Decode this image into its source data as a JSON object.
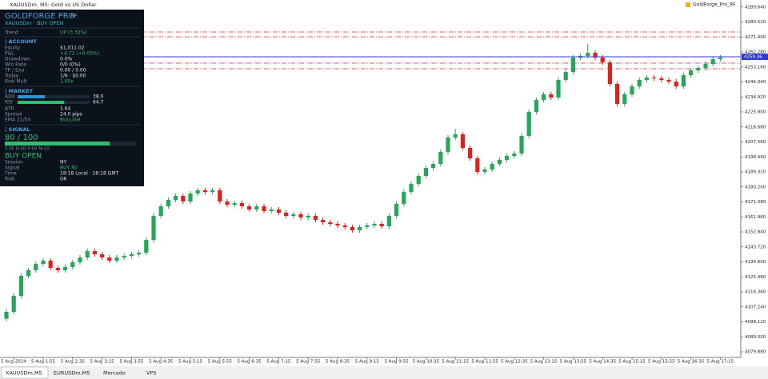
{
  "window": {
    "caption": "XAUUSDm, M5:  Gold vs US Dollar",
    "expert": "GoldForge_Pro_RF"
  },
  "chart_data": {
    "type": "candlestick",
    "categories": [
      null,
      "5 Aug 2024",
      null,
      null,
      null,
      "5 Aug 1:55",
      null,
      null,
      null,
      "5 Aug 2:35",
      null,
      null,
      null,
      "5 Aug 3:15",
      null,
      null,
      null,
      "5 Aug 3:55",
      null,
      null,
      null,
      "5 Aug 4:35",
      null,
      null,
      null,
      "5 Aug 5:15",
      null,
      null,
      null,
      "5 Aug 5:55",
      null,
      null,
      null,
      "5 Aug 6:35",
      null,
      null,
      null,
      "5 Aug 7:15",
      null,
      null,
      null,
      "5 Aug 7:55",
      null,
      null,
      null,
      "5 Aug 8:35",
      null,
      null,
      null,
      "5 Aug 9:15",
      null,
      null,
      null,
      "5 Aug 9:55",
      null,
      null,
      null,
      "5 Aug 10:35",
      null,
      null,
      null,
      "5 Aug 11:15",
      null,
      null,
      null,
      "5 Aug 11:55",
      null,
      null,
      null,
      "5 Aug 12:35",
      null,
      null,
      null,
      "5 Aug 13:15",
      null,
      null,
      null,
      "5 Aug 13:55",
      null,
      null,
      null,
      "5 Aug 14:35",
      null,
      null,
      null,
      "5 Aug 15:15",
      null,
      null,
      null,
      "5 Aug 15:55",
      null,
      null,
      null,
      "5 Aug 16:35",
      null,
      null,
      null,
      "5 Aug 17:15"
    ],
    "open": [
      4100.0,
      4104.2,
      4113.93,
      4126.09,
      4129.49,
      4133.38,
      4135.33,
      4130.95,
      4129.49,
      4131.44,
      4134.36,
      4137.28,
      4141.17,
      4139.22,
      4137.28,
      4135.33,
      4137.28,
      4138.25,
      4139.22,
      4140.19,
      4147.98,
      4162.57,
      4168.4,
      4172.3,
      4174.73,
      4171.32,
      4176.19,
      4178.13,
      4177.16,
      4178.13,
      4171.32,
      4169.38,
      4170.35,
      4168.4,
      4166.46,
      4168.4,
      4165.49,
      4166.46,
      4164.51,
      4162.57,
      4163.54,
      4161.6,
      4162.57,
      4160.14,
      4158.68,
      4157.7,
      4156.73,
      4155.76,
      4153.81,
      4155.76,
      4156.73,
      4157.7,
      4156.24,
      4162.57,
      4169.86,
      4177.16,
      4182.02,
      4186.89,
      4191.75,
      4194.18,
      4201.48,
      4210.24,
      4212.18,
      4203.91,
      4197.59,
      4189.32,
      4190.78,
      4194.18,
      4196.62,
      4199.05,
      4200.51,
      4211.21,
      4225.8,
      4233.1,
      4236.5,
      4234.56,
      4245.26,
      4250.12,
      4258.88,
      4259.85,
      4261.79,
      4258.88,
      4255.96,
      4242.82,
      4230.66,
      4236.5,
      4241.36,
      4245.26,
      4246.72,
      4246.23,
      4245.26,
      4244.28,
      4241.36,
      4248.17,
      4251.09,
      4252.55,
      4254.98,
      4257.9
    ],
    "high": [
      4105.7,
      4115.43,
      4127.59,
      4130.99,
      4134.88,
      4136.83,
      4136.83,
      4132.45,
      4132.94,
      4135.86,
      4138.78,
      4142.67,
      4142.67,
      4140.72,
      4138.78,
      4138.78,
      4139.75,
      4140.72,
      4141.69,
      4149.48,
      4164.07,
      4169.9,
      4173.8,
      4176.23,
      4176.23,
      4177.69,
      4179.63,
      4179.63,
      4179.63,
      4179.63,
      4172.82,
      4171.85,
      4171.85,
      4169.9,
      4169.9,
      4169.9,
      4167.96,
      4167.96,
      4166.01,
      4165.04,
      4165.04,
      4164.07,
      4164.07,
      4161.64,
      4160.18,
      4159.2,
      4158.23,
      4157.26,
      4157.26,
      4158.23,
      4159.2,
      4159.2,
      4164.07,
      4171.36,
      4178.66,
      4183.52,
      4188.39,
      4193.25,
      4195.68,
      4202.98,
      4211.74,
      4215.5,
      4213.68,
      4205.41,
      4199.09,
      4192.28,
      4195.68,
      4198.12,
      4200.55,
      4202.01,
      4212.71,
      4227.3,
      4234.6,
      4238.0,
      4238.0,
      4246.76,
      4251.62,
      4260.38,
      4261.35,
      4267.2,
      4263.29,
      4260.38,
      4257.46,
      4244.32,
      4238.0,
      4242.86,
      4246.76,
      4248.22,
      4248.22,
      4247.73,
      4246.76,
      4245.78,
      4249.67,
      4252.59,
      4254.05,
      4256.48,
      4259.4,
      4260.38
    ],
    "low": [
      4098.5,
      4102.7,
      4112.43,
      4124.59,
      4127.99,
      4131.88,
      4129.45,
      4127.99,
      4127.99,
      4129.94,
      4132.86,
      4135.78,
      4137.72,
      4135.78,
      4133.83,
      4133.83,
      4135.78,
      4136.75,
      4137.72,
      4138.69,
      4146.48,
      4161.07,
      4166.9,
      4170.8,
      4169.82,
      4169.82,
      4174.69,
      4175.66,
      4175.66,
      4169.82,
      4167.88,
      4167.88,
      4166.9,
      4164.96,
      4164.96,
      4163.99,
      4163.99,
      4163.01,
      4161.07,
      4161.07,
      4160.1,
      4160.1,
      4158.64,
      4157.18,
      4156.2,
      4155.23,
      4154.26,
      4152.31,
      4152.31,
      4154.26,
      4155.23,
      4154.74,
      4154.74,
      4161.07,
      4168.36,
      4175.66,
      4180.52,
      4185.39,
      4190.25,
      4192.68,
      4199.98,
      4208.74,
      4202.41,
      4196.09,
      4187.82,
      4187.82,
      4189.28,
      4192.68,
      4195.12,
      4197.55,
      4199.01,
      4209.71,
      4224.3,
      4231.6,
      4233.06,
      4233.06,
      4243.76,
      4248.62,
      4257.38,
      4258.35,
      4257.38,
      4254.46,
      4241.32,
      4229.16,
      4229.16,
      4235.0,
      4239.86,
      4243.76,
      4244.73,
      4243.76,
      4242.78,
      4239.86,
      4239.86,
      4246.67,
      4249.59,
      4251.05,
      4253.48,
      4256.4
    ],
    "close": [
      4104.2,
      4113.93,
      4126.09,
      4129.49,
      4133.38,
      4135.33,
      4130.95,
      4129.49,
      4131.44,
      4134.36,
      4137.28,
      4141.17,
      4139.22,
      4137.28,
      4135.33,
      4137.28,
      4138.25,
      4139.22,
      4140.19,
      4147.98,
      4162.57,
      4168.4,
      4172.3,
      4174.73,
      4171.32,
      4176.19,
      4178.13,
      4177.16,
      4178.13,
      4171.32,
      4169.38,
      4170.35,
      4168.4,
      4166.46,
      4168.4,
      4165.49,
      4166.46,
      4164.51,
      4162.57,
      4163.54,
      4161.6,
      4162.57,
      4160.14,
      4158.68,
      4157.7,
      4156.73,
      4155.76,
      4153.81,
      4155.76,
      4156.73,
      4157.7,
      4156.24,
      4162.57,
      4169.86,
      4177.16,
      4182.02,
      4186.89,
      4191.75,
      4194.18,
      4201.48,
      4210.24,
      4212.18,
      4203.91,
      4197.59,
      4189.32,
      4190.78,
      4194.18,
      4196.62,
      4199.05,
      4200.51,
      4211.21,
      4225.8,
      4233.1,
      4236.5,
      4234.56,
      4245.26,
      4250.12,
      4258.88,
      4259.85,
      4261.79,
      4258.88,
      4255.96,
      4242.82,
      4230.66,
      4236.5,
      4241.36,
      4245.26,
      4246.72,
      4246.23,
      4245.26,
      4244.28,
      4241.36,
      4248.17,
      4251.09,
      4252.55,
      4254.98,
      4257.9,
      4258.88
    ],
    "up_color": "#26a65b",
    "down_color": "#e0201b",
    "ylim": [
      4076.48,
      4293.9
    ],
    "yticks": [
      {
        "value": 4079.88,
        "label": "4079.880"
      },
      {
        "value": 4089.0,
        "label": "4089.000"
      },
      {
        "value": 4098.12,
        "label": "4098.120"
      },
      {
        "value": 4107.24,
        "label": "4107.240"
      },
      {
        "value": 4116.36,
        "label": "4116.360"
      },
      {
        "value": 4125.48,
        "label": "4125.480"
      },
      {
        "value": 4134.6,
        "label": "4134.600"
      },
      {
        "value": 4143.72,
        "label": "4143.720"
      },
      {
        "value": 4152.84,
        "label": "4152.840"
      },
      {
        "value": 4161.96,
        "label": "4161.960"
      },
      {
        "value": 4171.08,
        "label": "4171.080"
      },
      {
        "value": 4180.2,
        "label": "4180.200"
      },
      {
        "value": 4189.32,
        "label": "4189.320"
      },
      {
        "value": 4198.44,
        "label": "4198.440"
      },
      {
        "value": 4207.56,
        "label": "4207.560"
      },
      {
        "value": 4216.68,
        "label": "4216.680"
      },
      {
        "value": 4225.8,
        "label": "4225.800"
      },
      {
        "value": 4234.92,
        "label": "4234.920"
      },
      {
        "value": 4244.04,
        "label": "4244.040"
      },
      {
        "value": 4253.16,
        "label": "4253.160"
      },
      {
        "value": 4262.28,
        "label": "4262.280"
      },
      {
        "value": 4271.4,
        "label": "4271.400"
      },
      {
        "value": 4280.52,
        "label": "4280.520"
      },
      {
        "value": 4289.64,
        "label": "4289.640"
      }
    ],
    "levels": [
      4274.44,
      4271.52,
      4255.47,
      4252.07
    ],
    "level_color": "#d9302a",
    "bid": 4259.36,
    "bid_color": "#2f3bd0",
    "grid": false
  },
  "panel": {
    "title": "GOLDFORGE PRO",
    "badge": "RF",
    "subtitle": "XAUUSDm  ·  BUY OPEN",
    "trend": {
      "label": "Trend",
      "value": "UP (3.32%)",
      "color": "#2fbf71"
    },
    "account": {
      "heading": "| ACCOUNT",
      "rows": [
        {
          "label": "Equity",
          "value": "$1,011.02"
        },
        {
          "label": "P&L",
          "value": "+4.72 (+0.05%)",
          "color": "#2fbf71"
        },
        {
          "label": "Drawdown",
          "value": "0.0%"
        },
        {
          "label": "Win Rate",
          "value": "0/0 (0%)"
        },
        {
          "label": "TP / Exp",
          "value": "0.00 / 0.00"
        },
        {
          "label": "Today",
          "value": "1/6 · $0.00"
        },
        {
          "label": "Risk Mult",
          "value": "1.00x",
          "color": "#2fbf71"
        }
      ]
    },
    "market": {
      "heading": "| MARKET",
      "bars": [
        {
          "name": "ADX",
          "value": 38,
          "label": "38.0",
          "color": "#1e9bd7"
        },
        {
          "name": "RSI",
          "value": 64.7,
          "color": "#2fbf71"
        }
      ],
      "rows": [
        {
          "label": "ATR",
          "value": "1.64"
        },
        {
          "label": "Spread",
          "value": "24.0 pips"
        },
        {
          "label": "EMA 21/50",
          "value": "BULLISH",
          "color": "#2fbf71"
        }
      ]
    },
    "signal": {
      "heading": "| SIGNAL",
      "score": 80,
      "max": 100,
      "score_label": "80 / 100",
      "color": "#2fbf71",
      "components": "T:35  D:50  P:50  M:10",
      "status": "BUY OPEN",
      "rows": [
        {
          "label": "Session",
          "value": "NY"
        },
        {
          "label": "Signal",
          "value": "BUY 80",
          "color": "#2fbf71"
        },
        {
          "label": "Time",
          "value": "18:18 Local · 18:18 GMT"
        },
        {
          "label": "Risk",
          "value": "OK"
        }
      ]
    }
  },
  "tabs": [
    "XAUUSDm,M5",
    "EURUSDm,M5",
    "Mercado",
    "VPS"
  ]
}
